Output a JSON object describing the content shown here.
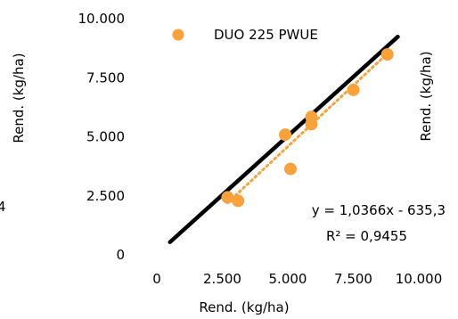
{
  "chart_data": {
    "type": "scatter",
    "legend": {
      "label": "DUO 225 PWUE",
      "position": "top-center"
    },
    "xlabel": "Rend. (kg/ha)",
    "ylabel_left": "Rend. (kg/ha)",
    "ylabel_right": "Rend. (kg/ha)",
    "left_edge_fragment": "4",
    "xlim": [
      0,
      10000
    ],
    "ylim": [
      0,
      10000
    ],
    "x_ticks": [
      {
        "value": 0,
        "label": "0"
      },
      {
        "value": 2500,
        "label": "2.500"
      },
      {
        "value": 5000,
        "label": "5.000"
      },
      {
        "value": 7500,
        "label": "7.500"
      },
      {
        "value": 10000,
        "label": "10.000"
      }
    ],
    "y_ticks": [
      {
        "value": 0,
        "label": "0"
      },
      {
        "value": 2500,
        "label": "2.500"
      },
      {
        "value": 5000,
        "label": "5.000"
      },
      {
        "value": 7500,
        "label": "7.500"
      },
      {
        "value": 10000,
        "label": "10.000"
      }
    ],
    "series": [
      {
        "name": "DUO 225 PWUE",
        "color": "#F9A23A",
        "points": [
          {
            "x": 2700,
            "y": 2400
          },
          {
            "x": 3100,
            "y": 2250
          },
          {
            "x": 4900,
            "y": 5050
          },
          {
            "x": 5100,
            "y": 3600
          },
          {
            "x": 5900,
            "y": 5800
          },
          {
            "x": 5900,
            "y": 5500
          },
          {
            "x": 7500,
            "y": 6950
          },
          {
            "x": 8800,
            "y": 8450
          }
        ]
      }
    ],
    "reference_line": {
      "color": "#000000",
      "from": [
        500,
        500
      ],
      "to": [
        9200,
        9200
      ]
    },
    "trendline": {
      "color": "#F9A23A",
      "style": "dotted",
      "slope": 1.0366,
      "intercept": -635.3
    },
    "equation": "y = 1,0366x - 635,3",
    "r_squared": "R² = 0,9455",
    "grid": false
  }
}
